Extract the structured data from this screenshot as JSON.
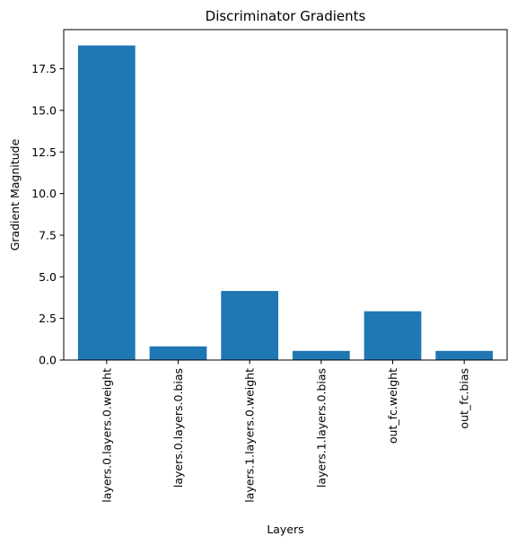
{
  "chart_data": {
    "type": "bar",
    "title": "Discriminator Gradients",
    "xlabel": "Layers",
    "ylabel": "Gradient Magnitude",
    "categories": [
      "layers.0.layers.0.weight",
      "layers.0.layers.0.bias",
      "layers.1.layers.0.weight",
      "layers.1.layers.0.bias",
      "out_fc.weight",
      "out_fc.bias"
    ],
    "values": [
      18.9,
      0.82,
      4.15,
      0.55,
      2.93,
      0.55
    ],
    "ylim": [
      0,
      19.85
    ],
    "yticks": [
      0.0,
      2.5,
      5.0,
      7.5,
      10.0,
      12.5,
      15.0,
      17.5
    ],
    "ytick_labels": [
      "0.0",
      "2.5",
      "5.0",
      "7.5",
      "10.0",
      "12.5",
      "15.0",
      "17.5"
    ],
    "bar_color": "#1f77b4",
    "grid": false,
    "legend": null
  }
}
